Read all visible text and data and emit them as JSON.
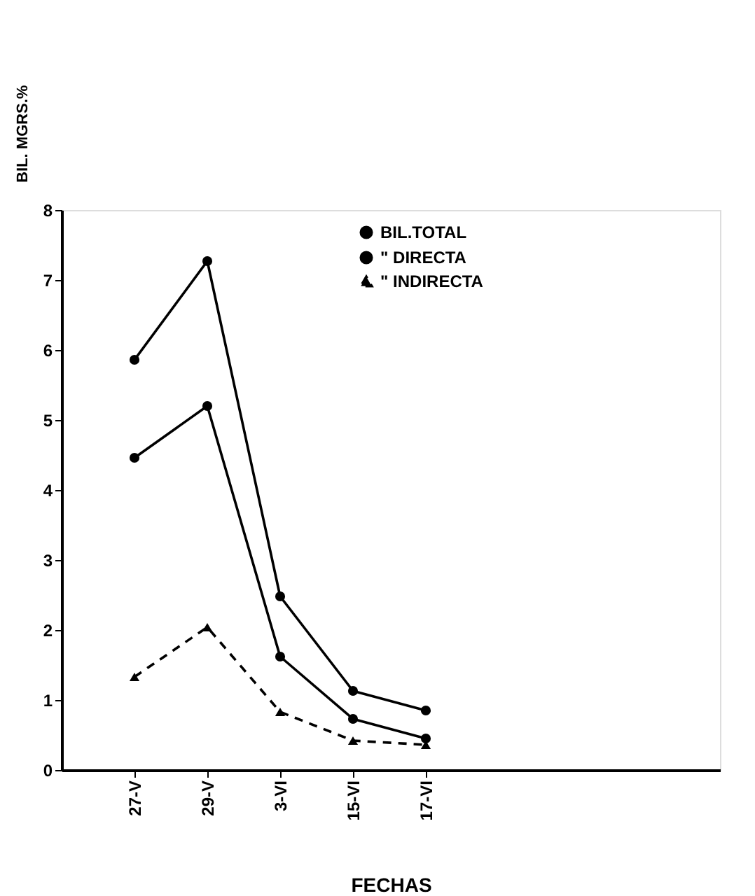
{
  "chart_data": {
    "type": "line",
    "xlabel": "FECHAS",
    "ylabel": "BIL. MGRS.%",
    "categories": [
      "27-V",
      "29-V",
      "3-VI",
      "15-VI",
      "17-VI"
    ],
    "ylim": [
      0,
      8
    ],
    "yticks": [
      0,
      1,
      2,
      3,
      4,
      5,
      6,
      7,
      8
    ],
    "grid": false,
    "legend": "top right",
    "series": [
      {
        "name": "BIL.TOTAL",
        "color": "#000000",
        "marker": "circle",
        "line_style": "solid",
        "values": [
          5.86,
          7.27,
          2.48,
          1.13,
          0.85
        ]
      },
      {
        "name": "\" DIRECTA",
        "color": "#000000",
        "marker": "circle",
        "line_style": "solid",
        "values": [
          4.46,
          5.2,
          1.62,
          0.73,
          0.45
        ]
      },
      {
        "name": "\" INDIRECTA",
        "color": "#000000",
        "marker": "triangle",
        "line_style": "dashed",
        "values": [
          1.33,
          2.04,
          0.83,
          0.42,
          0.36
        ]
      }
    ]
  }
}
